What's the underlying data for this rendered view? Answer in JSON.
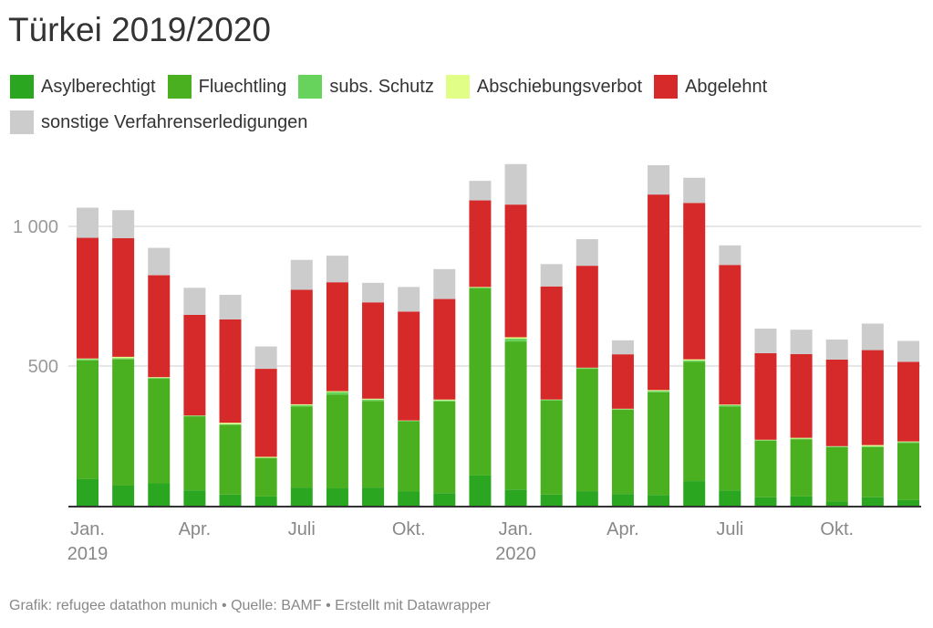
{
  "title": "Türkei 2019/2020",
  "footer": "Grafik: refugee datathon munich • Quelle: BAMF • Erstellt mit Datawrapper",
  "chart_data": {
    "type": "bar",
    "stacked": true,
    "title": "Türkei 2019/2020",
    "xlabel": "",
    "ylabel": "",
    "ylim": [
      0,
      1250
    ],
    "grid": true,
    "legend_position": "top",
    "categories": [
      "2019-01",
      "2019-02",
      "2019-03",
      "2019-04",
      "2019-05",
      "2019-06",
      "2019-07",
      "2019-08",
      "2019-09",
      "2019-10",
      "2019-11",
      "2019-12",
      "2020-01",
      "2020-02",
      "2020-03",
      "2020-04",
      "2020-05",
      "2020-06",
      "2020-07",
      "2020-08",
      "2020-09",
      "2020-10",
      "2020-11",
      "2020-12"
    ],
    "y_ticks": [
      {
        "value": 500,
        "label": "500"
      },
      {
        "value": 1000,
        "label": "1 000"
      }
    ],
    "x_ticks": [
      {
        "index": 0,
        "label": "Jan.",
        "sub": "2019"
      },
      {
        "index": 3,
        "label": "Apr.",
        "sub": ""
      },
      {
        "index": 6,
        "label": "Juli",
        "sub": ""
      },
      {
        "index": 9,
        "label": "Okt.",
        "sub": ""
      },
      {
        "index": 12,
        "label": "Jan.",
        "sub": "2020"
      },
      {
        "index": 15,
        "label": "Apr.",
        "sub": ""
      },
      {
        "index": 18,
        "label": "Juli",
        "sub": ""
      },
      {
        "index": 21,
        "label": "Okt.",
        "sub": ""
      }
    ],
    "series": [
      {
        "name": "Asylberechtigt",
        "color": "#2aa621",
        "values": [
          95,
          72,
          80,
          55,
          40,
          33,
          65,
          62,
          65,
          52,
          45,
          108,
          58,
          40,
          52,
          42,
          38,
          88,
          55,
          30,
          33,
          15,
          30,
          20
        ]
      },
      {
        "name": "Fluechtling",
        "color": "#4ab020",
        "values": [
          425,
          452,
          375,
          265,
          250,
          137,
          290,
          335,
          310,
          250,
          328,
          670,
          530,
          336,
          438,
          302,
          368,
          427,
          300,
          203,
          205,
          195,
          180,
          205
        ]
      },
      {
        "name": "subs. Schutz",
        "color": "#67d35c",
        "values": [
          5,
          4,
          3,
          2,
          2,
          2,
          5,
          10,
          5,
          2,
          4,
          3,
          10,
          3,
          3,
          2,
          5,
          5,
          5,
          2,
          2,
          2,
          3,
          3
        ]
      },
      {
        "name": "Abschiebungsverbot",
        "color": "#e1ff86",
        "values": [
          2,
          5,
          2,
          1,
          5,
          3,
          3,
          3,
          3,
          1,
          3,
          2,
          5,
          1,
          1,
          1,
          3,
          4,
          2,
          1,
          3,
          1,
          4,
          2
        ]
      },
      {
        "name": "Abgelehnt",
        "color": "#d62a2a",
        "values": [
          432,
          425,
          365,
          360,
          370,
          315,
          410,
          390,
          345,
          390,
          360,
          310,
          475,
          405,
          365,
          195,
          700,
          560,
          500,
          310,
          300,
          310,
          340,
          285
        ]
      },
      {
        "name": "sonstige Verfahrenserledigungen",
        "color": "#cccccc",
        "values": [
          108,
          100,
          98,
          97,
          88,
          80,
          107,
          95,
          70,
          88,
          107,
          70,
          145,
          80,
          95,
          50,
          105,
          90,
          70,
          88,
          87,
          72,
          95,
          75
        ]
      }
    ]
  }
}
